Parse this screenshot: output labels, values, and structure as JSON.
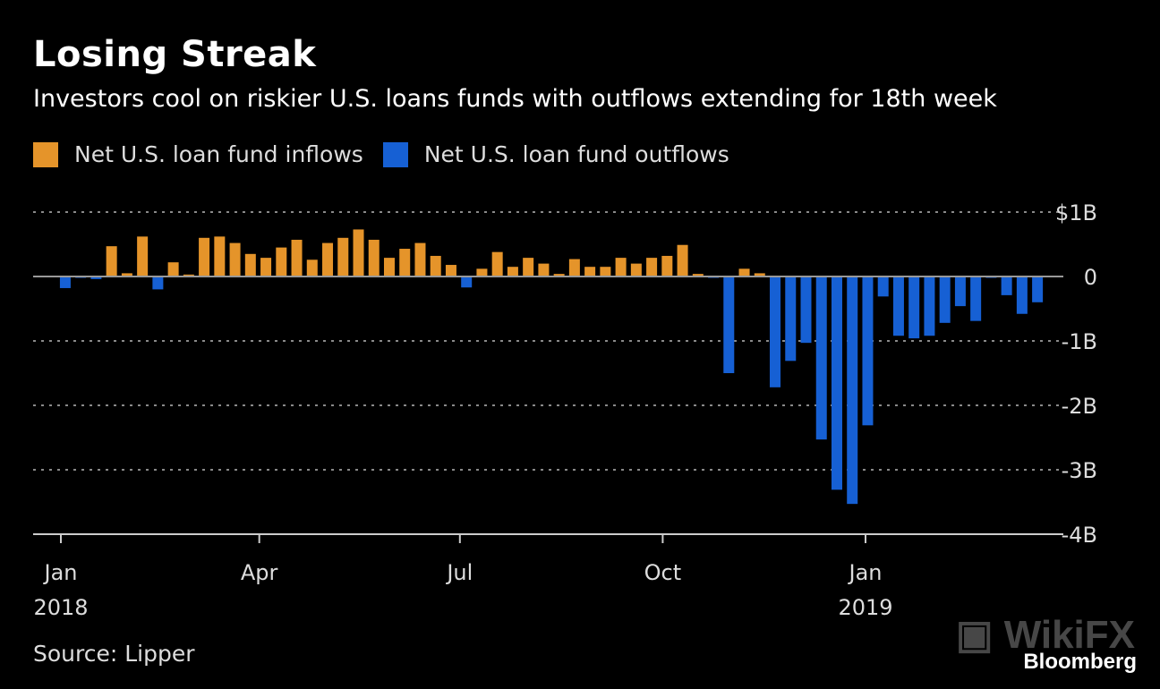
{
  "title": "Losing Streak",
  "subtitle": "Investors cool on riskier U.S. loans funds with outflows extending for 18th week",
  "source": "Source: Lipper",
  "brand": "Bloomberg",
  "watermark": "WikiFX",
  "colors": {
    "inflow": "#e5942a",
    "outflow": "#1660d4",
    "grid": "#8a8a8a",
    "background": "#000000"
  },
  "chart_data": {
    "type": "bar",
    "title": "Losing Streak",
    "legend": [
      "Net U.S. loan fund inflows",
      "Net U.S. loan fund outflows"
    ],
    "legend_position": "top-left",
    "ylim": [
      -4,
      1
    ],
    "y_unit": "billion USD",
    "y_ticks": [
      {
        "v": 1,
        "label": "$1B"
      },
      {
        "v": 0,
        "label": "0"
      },
      {
        "v": -1,
        "label": "-1B"
      },
      {
        "v": -2,
        "label": "-2B"
      },
      {
        "v": -3,
        "label": "-3B"
      },
      {
        "v": -4,
        "label": "-4B"
      }
    ],
    "x_ticks": [
      {
        "date": "2018-01-01",
        "label": "Jan",
        "year": "2018"
      },
      {
        "date": "2018-04-01",
        "label": "Apr",
        "year": ""
      },
      {
        "date": "2018-07-01",
        "label": "Jul",
        "year": ""
      },
      {
        "date": "2018-10-01",
        "label": "Oct",
        "year": ""
      },
      {
        "date": "2019-01-01",
        "label": "Jan",
        "year": "2019"
      }
    ],
    "grid": true,
    "x": [
      "2018-01-03",
      "2018-01-10",
      "2018-01-17",
      "2018-01-24",
      "2018-01-31",
      "2018-02-07",
      "2018-02-14",
      "2018-02-21",
      "2018-02-28",
      "2018-03-07",
      "2018-03-14",
      "2018-03-21",
      "2018-03-28",
      "2018-04-04",
      "2018-04-11",
      "2018-04-18",
      "2018-04-25",
      "2018-05-02",
      "2018-05-09",
      "2018-05-16",
      "2018-05-23",
      "2018-05-30",
      "2018-06-06",
      "2018-06-13",
      "2018-06-20",
      "2018-06-27",
      "2018-07-04",
      "2018-07-11",
      "2018-07-18",
      "2018-07-25",
      "2018-08-01",
      "2018-08-08",
      "2018-08-15",
      "2018-08-22",
      "2018-08-29",
      "2018-09-05",
      "2018-09-12",
      "2018-09-19",
      "2018-09-26",
      "2018-10-03",
      "2018-10-10",
      "2018-10-17",
      "2018-10-24",
      "2018-10-31",
      "2018-11-07",
      "2018-11-14",
      "2018-11-21",
      "2018-11-28",
      "2018-12-05",
      "2018-12-12",
      "2018-12-19",
      "2018-12-26",
      "2019-01-02",
      "2019-01-09",
      "2019-01-16",
      "2019-01-23",
      "2019-01-30",
      "2019-02-06",
      "2019-02-13",
      "2019-02-20",
      "2019-02-27",
      "2019-03-06",
      "2019-03-13",
      "2019-03-20"
    ],
    "values": [
      -0.18,
      -0.02,
      -0.04,
      0.47,
      0.05,
      0.62,
      -0.2,
      0.22,
      0.03,
      0.6,
      0.62,
      0.52,
      0.35,
      0.29,
      0.45,
      0.57,
      0.26,
      0.52,
      0.6,
      0.73,
      0.57,
      0.29,
      0.43,
      0.52,
      0.32,
      0.18,
      -0.17,
      0.12,
      0.38,
      0.15,
      0.29,
      0.2,
      0.04,
      0.27,
      0.15,
      0.15,
      0.29,
      0.2,
      0.29,
      0.32,
      0.49,
      0.04,
      -0.02,
      -1.5,
      0.12,
      0.05,
      -1.72,
      -1.31,
      -1.03,
      -2.53,
      -3.31,
      -3.53,
      -2.31,
      -0.31,
      -0.92,
      -0.96,
      -0.92,
      -0.72,
      -0.46,
      -0.69,
      -0.01,
      -0.29,
      -0.58,
      -0.4
    ]
  }
}
